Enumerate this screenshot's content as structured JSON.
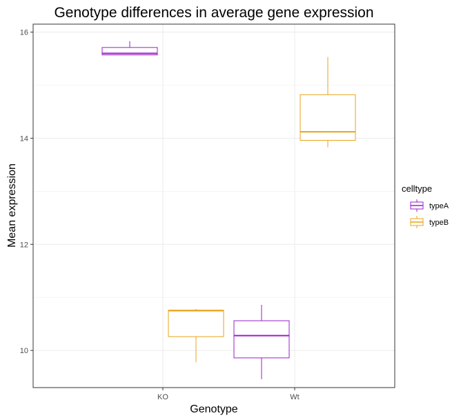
{
  "chart_data": {
    "type": "boxplot",
    "title": "Genotype differences in average gene expression",
    "xlabel": "Genotype",
    "ylabel": "Mean expression",
    "categories": [
      "KO",
      "Wt"
    ],
    "y_ticks": [
      10,
      12,
      14,
      16
    ],
    "ylim": [
      9.3,
      16.15
    ],
    "grid": true,
    "legend": {
      "title": "celltype",
      "position": "right"
    },
    "series": [
      {
        "name": "typeA",
        "color": "#9a1ecb",
        "boxes": [
          {
            "category": "KO",
            "min": 15.57,
            "q1": 15.57,
            "median": 15.6,
            "q3": 15.71,
            "max": 15.83
          },
          {
            "category": "Wt",
            "min": 9.46,
            "q1": 9.86,
            "median": 10.28,
            "q3": 10.56,
            "max": 10.86
          }
        ]
      },
      {
        "name": "typeB",
        "color": "#e8a317",
        "boxes": [
          {
            "category": "KO",
            "min": 9.78,
            "q1": 10.26,
            "median": 10.75,
            "q3": 10.76,
            "max": 10.78
          },
          {
            "category": "Wt",
            "min": 13.83,
            "q1": 13.96,
            "median": 14.12,
            "q3": 14.82,
            "max": 15.53
          }
        ]
      }
    ]
  }
}
